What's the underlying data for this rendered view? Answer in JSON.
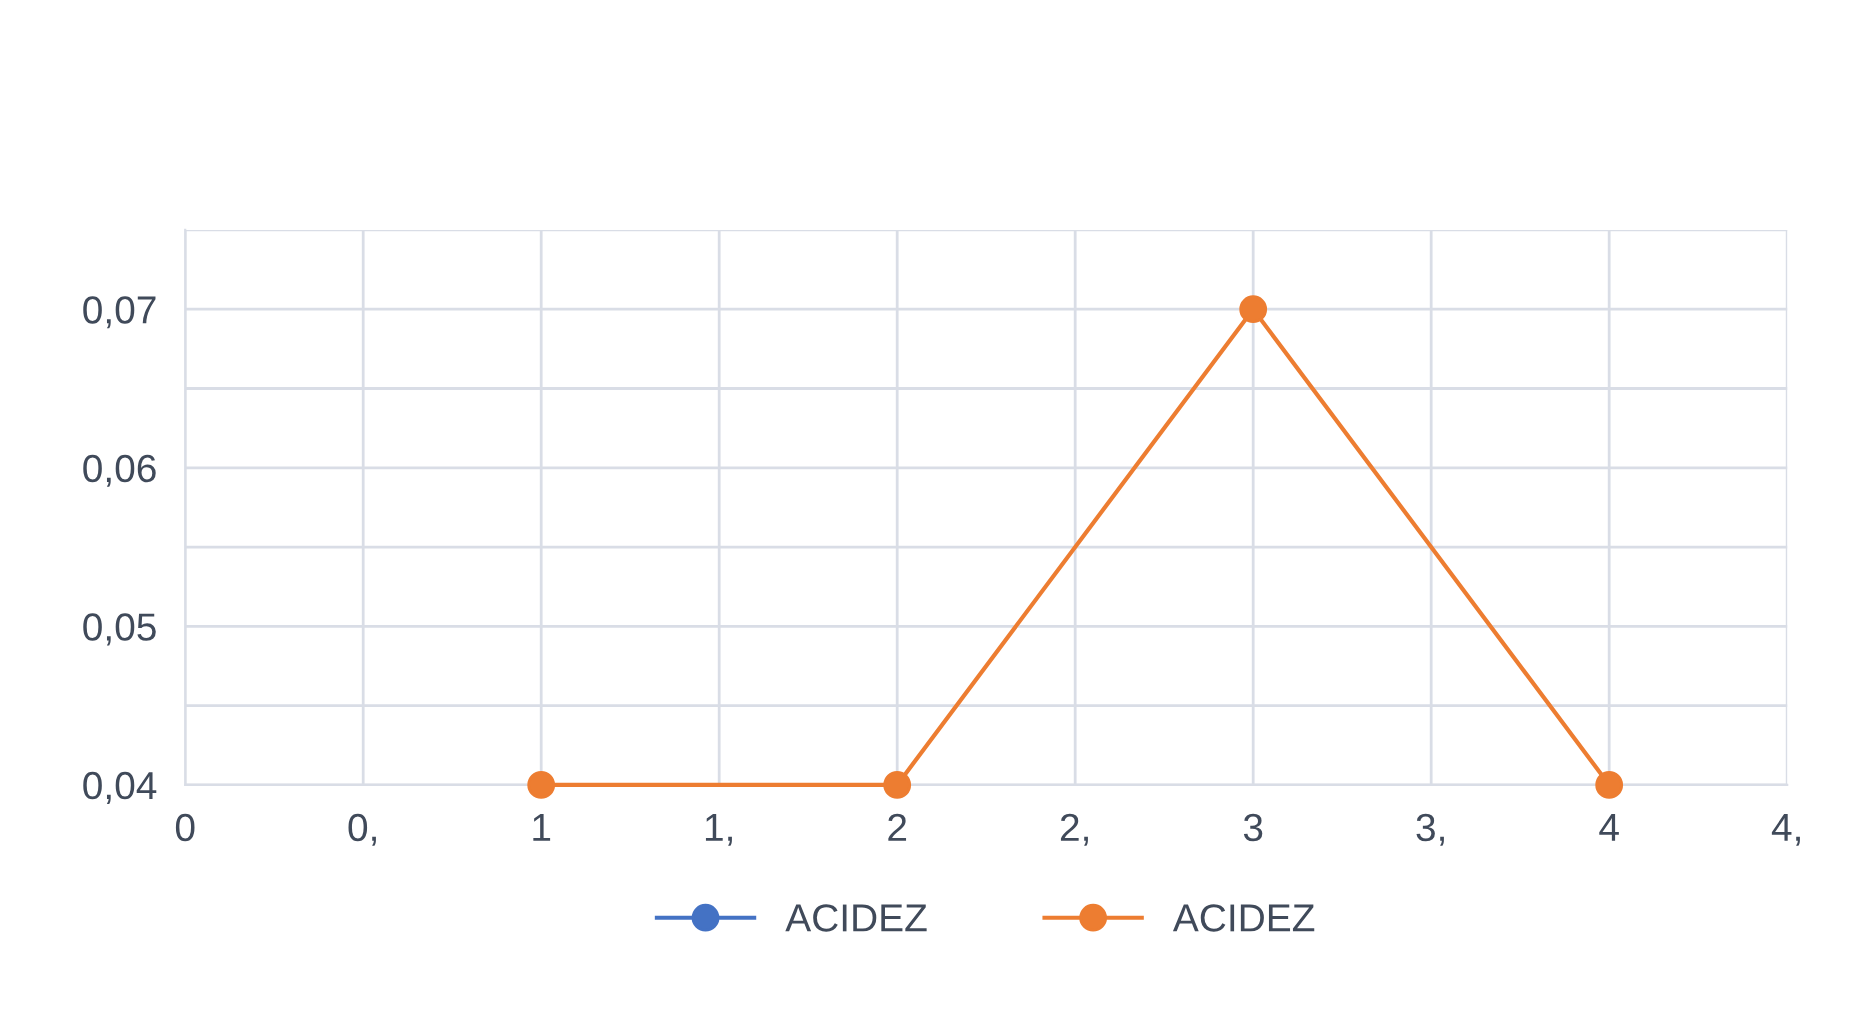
{
  "chart_data": {
    "type": "line",
    "x": [
      1,
      2,
      3,
      4
    ],
    "series": [
      {
        "name": "ACIDEZ",
        "color": "#4472c4",
        "values": [
          null,
          null,
          null,
          null
        ]
      },
      {
        "name": "ACIDEZ",
        "color": "#ed7d31",
        "values": [
          0.04,
          0.04,
          0.07,
          0.04
        ]
      }
    ],
    "xlim": [
      0,
      4.5
    ],
    "xticks": [
      0,
      {
        "value": 0.5,
        "label": "0,"
      },
      1,
      {
        "value": 1.5,
        "label": "1,"
      },
      2,
      {
        "value": 2.5,
        "label": "2,"
      },
      3,
      {
        "value": 3.5,
        "label": "3,"
      },
      4,
      {
        "value": 4.5,
        "label": "4,"
      }
    ],
    "ylim": [
      0.04,
      0.075
    ],
    "yticks": [
      {
        "value": 0.04,
        "label": "0,04"
      },
      {
        "value": 0.045,
        "label": null
      },
      {
        "value": 0.05,
        "label": "0,05"
      },
      {
        "value": 0.055,
        "label": null
      },
      {
        "value": 0.06,
        "label": "0,06"
      },
      {
        "value": 0.065,
        "label": null
      },
      {
        "value": 0.07,
        "label": "0,07"
      },
      {
        "value": 0.075,
        "label": null
      }
    ],
    "grid": true,
    "legend": "bottom",
    "marker": "circle",
    "line_style": "solid"
  }
}
